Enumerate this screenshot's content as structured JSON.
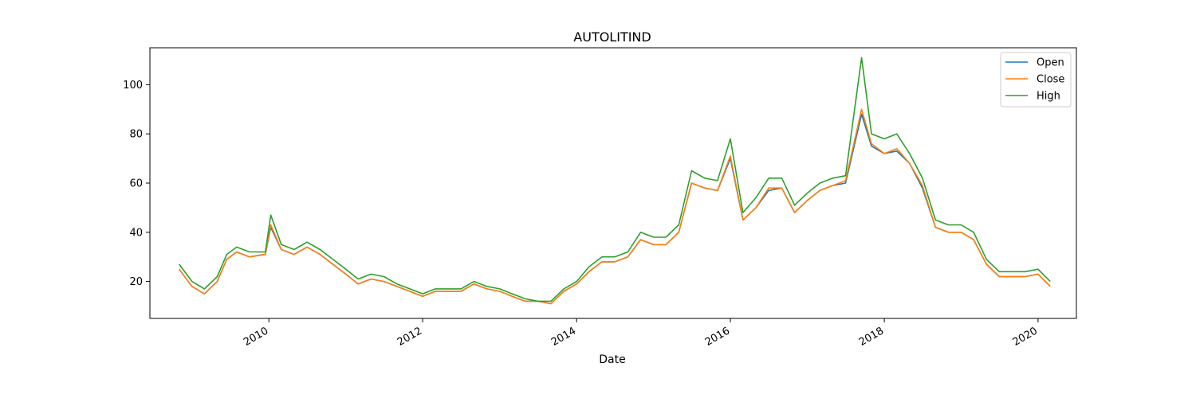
{
  "chart_data": {
    "type": "line",
    "title": "AUTOLITIND",
    "xlabel": "Date",
    "ylabel": "",
    "xlim": [
      "2008-06-15",
      "2020-07-01"
    ],
    "ylim": [
      5,
      115
    ],
    "x_ticks": [
      "2010",
      "2012",
      "2014",
      "2016",
      "2018",
      "2020"
    ],
    "y_ticks": [
      20,
      40,
      60,
      80,
      100
    ],
    "grid": false,
    "legend_position": "top-right",
    "colors": {
      "Open": "#1f77b4",
      "Close": "#ff7f0e",
      "High": "#2ca02c"
    },
    "x": [
      "2008-11-01",
      "2009-01-01",
      "2009-03-01",
      "2009-05-01",
      "2009-06-15",
      "2009-08-01",
      "2009-10-01",
      "2009-12-15",
      "2010-01-10",
      "2010-03-01",
      "2010-05-01",
      "2010-07-01",
      "2010-09-01",
      "2010-11-01",
      "2011-01-01",
      "2011-03-01",
      "2011-05-01",
      "2011-07-01",
      "2011-09-01",
      "2011-11-01",
      "2012-01-01",
      "2012-03-01",
      "2012-05-01",
      "2012-07-01",
      "2012-09-01",
      "2012-11-01",
      "2013-01-01",
      "2013-03-01",
      "2013-05-01",
      "2013-07-01",
      "2013-09-01",
      "2013-11-01",
      "2014-01-01",
      "2014-03-01",
      "2014-05-01",
      "2014-07-01",
      "2014-09-01",
      "2014-11-01",
      "2015-01-01",
      "2015-03-01",
      "2015-05-01",
      "2015-07-01",
      "2015-09-01",
      "2015-11-01",
      "2016-01-01",
      "2016-03-01",
      "2016-05-01",
      "2016-07-01",
      "2016-09-01",
      "2016-11-01",
      "2017-01-01",
      "2017-03-01",
      "2017-05-01",
      "2017-07-01",
      "2017-09-15",
      "2017-11-01",
      "2018-01-01",
      "2018-03-01",
      "2018-05-01",
      "2018-07-01",
      "2018-09-01",
      "2018-11-01",
      "2019-01-01",
      "2019-03-01",
      "2019-05-01",
      "2019-07-01",
      "2019-09-01",
      "2019-11-01",
      "2020-01-01",
      "2020-02-28"
    ],
    "series": [
      {
        "name": "Open",
        "values": [
          25,
          18,
          15,
          20,
          29,
          32,
          30,
          31,
          42,
          33,
          31,
          34,
          31,
          27,
          23,
          19,
          21,
          20,
          18,
          16,
          14,
          16,
          16,
          16,
          19,
          17,
          16,
          14,
          12,
          12,
          11,
          16,
          19,
          24,
          28,
          28,
          30,
          37,
          35,
          35,
          40,
          60,
          58,
          57,
          70,
          45,
          50,
          57,
          58,
          48,
          53,
          57,
          59,
          60,
          88,
          75,
          72,
          73,
          68,
          58,
          42,
          40,
          40,
          37,
          27,
          22,
          22,
          22,
          23,
          18
        ]
      },
      {
        "name": "Close",
        "values": [
          25,
          18,
          15,
          20,
          29,
          32,
          30,
          31,
          43,
          33,
          31,
          34,
          31,
          27,
          23,
          19,
          21,
          20,
          18,
          16,
          14,
          16,
          16,
          16,
          19,
          17,
          16,
          14,
          12,
          12,
          11,
          16,
          19,
          24,
          28,
          28,
          30,
          37,
          35,
          35,
          40,
          60,
          58,
          57,
          71,
          45,
          50,
          58,
          58,
          48,
          53,
          57,
          59,
          61,
          90,
          76,
          72,
          74,
          68,
          59,
          42,
          40,
          40,
          37,
          27,
          22,
          22,
          22,
          23,
          18
        ]
      },
      {
        "name": "High",
        "values": [
          27,
          20,
          17,
          22,
          31,
          34,
          32,
          32,
          47,
          35,
          33,
          36,
          33,
          29,
          25,
          21,
          23,
          22,
          19,
          17,
          15,
          17,
          17,
          17,
          20,
          18,
          17,
          15,
          13,
          12,
          12,
          17,
          20,
          26,
          30,
          30,
          32,
          40,
          38,
          38,
          43,
          65,
          62,
          61,
          78,
          48,
          54,
          62,
          62,
          51,
          56,
          60,
          62,
          63,
          111,
          80,
          78,
          80,
          72,
          62,
          45,
          43,
          43,
          40,
          29,
          24,
          24,
          24,
          25,
          20
        ]
      }
    ]
  }
}
